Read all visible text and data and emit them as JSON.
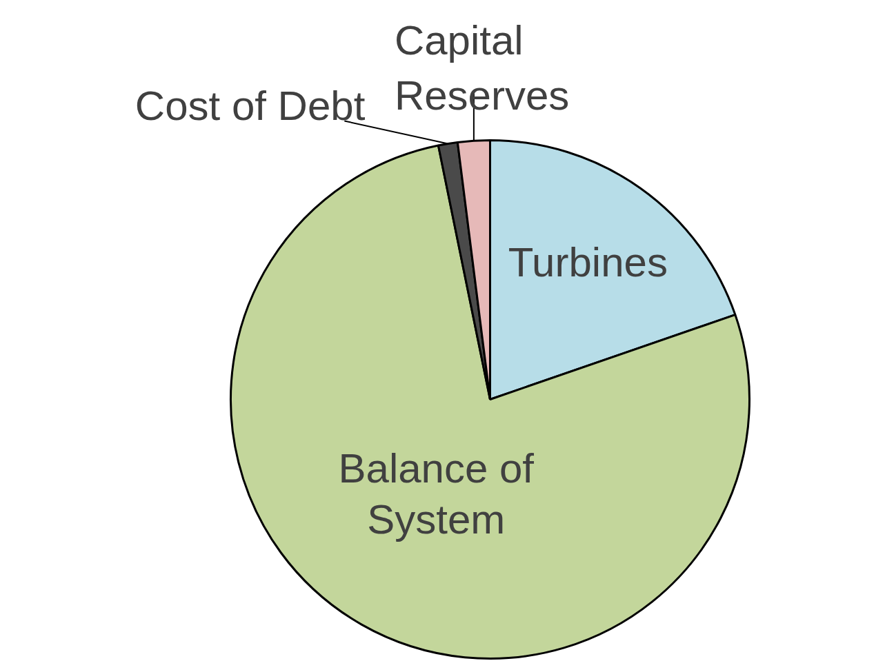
{
  "chart_data": {
    "type": "pie",
    "categories": [
      "Turbines",
      "Balance of System",
      "Cost of Debt",
      "Capital Reserves"
    ],
    "values": [
      19.7,
      77.1,
      1.2,
      2.0
    ],
    "colors": [
      "#b7dde8",
      "#c3d69b",
      "#4a4a4a",
      "#e6b9b8"
    ]
  }
}
